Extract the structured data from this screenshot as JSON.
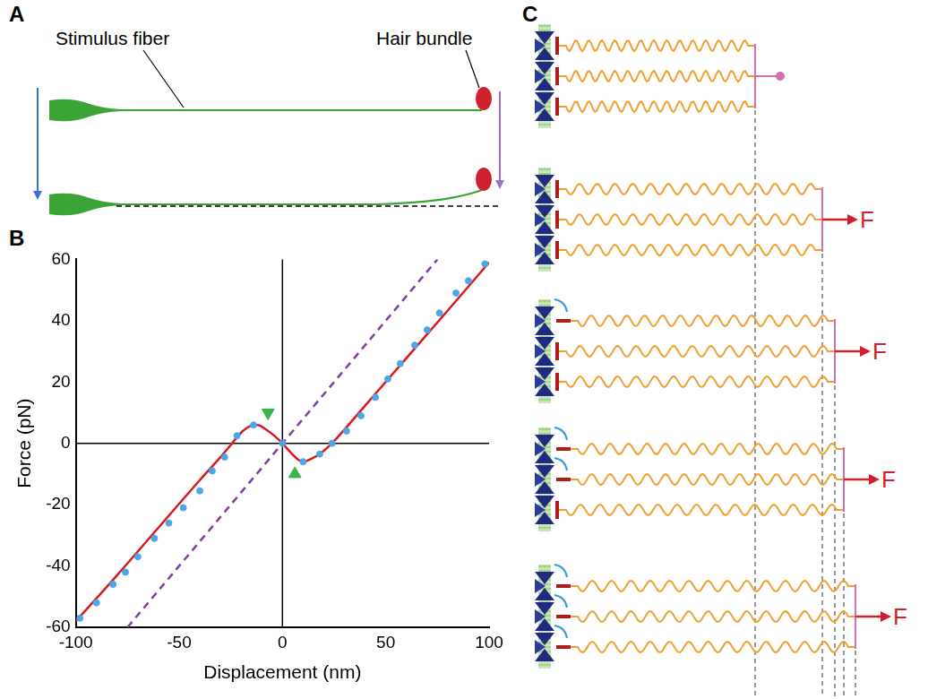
{
  "panel_labels": [
    "A",
    "B",
    "C"
  ],
  "diagram_a": {
    "labels": [
      "Stimulus fiber",
      "Hair bundle"
    ]
  },
  "diagram_c": {
    "force_labels": [
      "F",
      "F",
      "F",
      "F"
    ]
  },
  "chart_data": {
    "type": "line",
    "x_label": "Displacement (nm)",
    "y_label": "Force (pN)",
    "xlim": [
      -100,
      100
    ],
    "xticks": [
      -100,
      -50,
      0,
      50,
      100
    ],
    "ylim": [
      -60,
      60
    ],
    "yticks": [
      -60,
      -40,
      -20,
      0,
      20,
      40,
      60
    ],
    "grid": false,
    "series": [
      {
        "type": "line",
        "color": "#d7191c",
        "line_style": "solid",
        "marker": "none",
        "x": [
          -100,
          -80,
          -60,
          -40,
          -30,
          -25,
          -20,
          -15,
          -12,
          -8,
          -4,
          0,
          4,
          8,
          10,
          14,
          18,
          24,
          30,
          40,
          60,
          80,
          100
        ],
        "values": [
          -58,
          -43,
          -27.5,
          -12,
          -4.5,
          -0.5,
          3.5,
          5.8,
          6,
          4.5,
          2.5,
          0,
          -3,
          -5.5,
          -6,
          -5,
          -3.5,
          0,
          4.5,
          12.3,
          27.8,
          43.3,
          59
        ]
      },
      {
        "type": "scatter",
        "color": "#4da6e8",
        "marker": "circle",
        "x": [
          -98,
          -90,
          -82,
          -76,
          -70,
          -62,
          -55,
          -48,
          -40,
          -34,
          -28,
          -22,
          -14,
          0,
          10,
          18,
          24,
          31,
          38,
          45,
          51,
          57,
          64,
          70,
          76,
          84,
          90,
          98
        ],
        "values": [
          -57,
          -52,
          -46,
          -42,
          -37,
          -31,
          -26,
          -21,
          -15.5,
          -9,
          -4.5,
          2.5,
          6,
          0,
          -6,
          -3.5,
          0,
          4,
          9,
          15,
          21,
          26,
          32,
          37,
          42.5,
          49,
          53,
          58.5
        ]
      },
      {
        "type": "line",
        "color": "#7b3fa0",
        "line_style": "dashed",
        "marker": "none",
        "x": [
          -75,
          75
        ],
        "values": [
          -60,
          60
        ]
      },
      {
        "type": "scatter",
        "color": "#3cb44b",
        "marker": "triangle_down",
        "x": [
          -7
        ],
        "values": [
          10
        ]
      },
      {
        "type": "scatter",
        "color": "#3cb44b",
        "marker": "triangle_up",
        "x": [
          6
        ],
        "values": [
          -10
        ]
      }
    ]
  }
}
